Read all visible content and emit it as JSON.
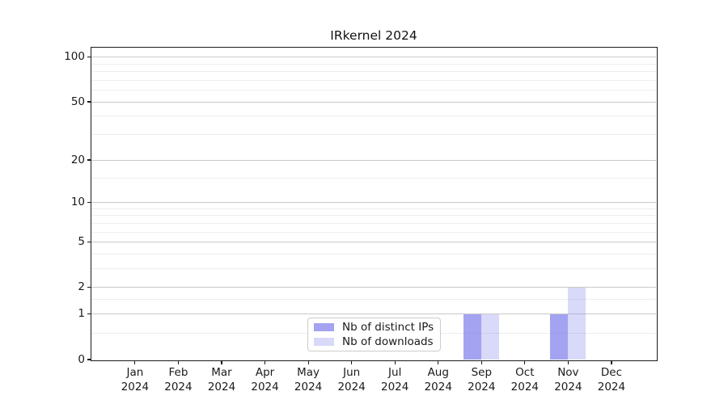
{
  "chart_data": {
    "type": "bar",
    "title": "IRkernel 2024",
    "yscale": "log1p",
    "categories": [
      "Jan",
      "Feb",
      "Mar",
      "Apr",
      "May",
      "Jun",
      "Jul",
      "Aug",
      "Sep",
      "Oct",
      "Nov",
      "Dec"
    ],
    "x_tick_year": "2024",
    "series": [
      {
        "name": "Nb of distinct IPs",
        "color": "#8080ec",
        "opacity": 0.72,
        "rendered_color": "#a3a3ef",
        "values": [
          0,
          0,
          0,
          0,
          0,
          0,
          0,
          0,
          1,
          0,
          1,
          0
        ]
      },
      {
        "name": "Nb of downloads",
        "color": "#8080ec",
        "opacity": 0.3,
        "rendered_color": "#d9d9f8",
        "values": [
          0,
          0,
          0,
          0,
          0,
          0,
          0,
          0,
          1,
          0,
          2,
          0
        ]
      }
    ],
    "y_ticks": [
      0,
      1,
      2,
      5,
      10,
      20,
      50,
      100
    ],
    "y_minor_ticks": [
      0.5,
      1.5,
      3,
      4,
      6,
      7,
      8,
      9,
      15,
      30,
      40,
      60,
      70,
      80,
      90
    ],
    "ylim": [
      0,
      116
    ],
    "grid": "horizontal",
    "grid_major_color": "#c9c9c9",
    "grid_minor_color": "#ededed",
    "axis_color": "#1a1a1a",
    "legend_position": "lower center"
  }
}
